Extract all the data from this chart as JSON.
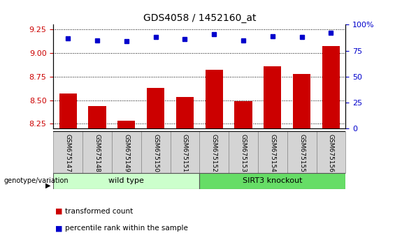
{
  "title": "GDS4058 / 1452160_at",
  "samples": [
    "GSM675147",
    "GSM675148",
    "GSM675149",
    "GSM675150",
    "GSM675151",
    "GSM675152",
    "GSM675153",
    "GSM675154",
    "GSM675155",
    "GSM675156"
  ],
  "bar_values": [
    8.57,
    8.44,
    8.28,
    8.63,
    8.53,
    8.82,
    8.49,
    8.86,
    8.78,
    9.07
  ],
  "dot_values": [
    87,
    85,
    84,
    88,
    86,
    91,
    85,
    89,
    88,
    92
  ],
  "bar_color": "#cc0000",
  "dot_color": "#0000cc",
  "ylim_left": [
    8.2,
    9.3
  ],
  "ylim_right": [
    0,
    100
  ],
  "yticks_left": [
    8.25,
    8.5,
    8.75,
    9.0,
    9.25
  ],
  "yticks_right": [
    0,
    25,
    50,
    75,
    100
  ],
  "group_label": "genotype/variation",
  "wt_label": "wild type",
  "wt_color": "#ccffcc",
  "ko_label": "SIRT3 knockout",
  "ko_color": "#66dd66",
  "legend_bar_label": "transformed count",
  "legend_dot_label": "percentile rank within the sample",
  "tick_label_color_left": "#cc0000",
  "tick_label_color_right": "#0000cc",
  "sample_box_color": "#d4d4d4"
}
